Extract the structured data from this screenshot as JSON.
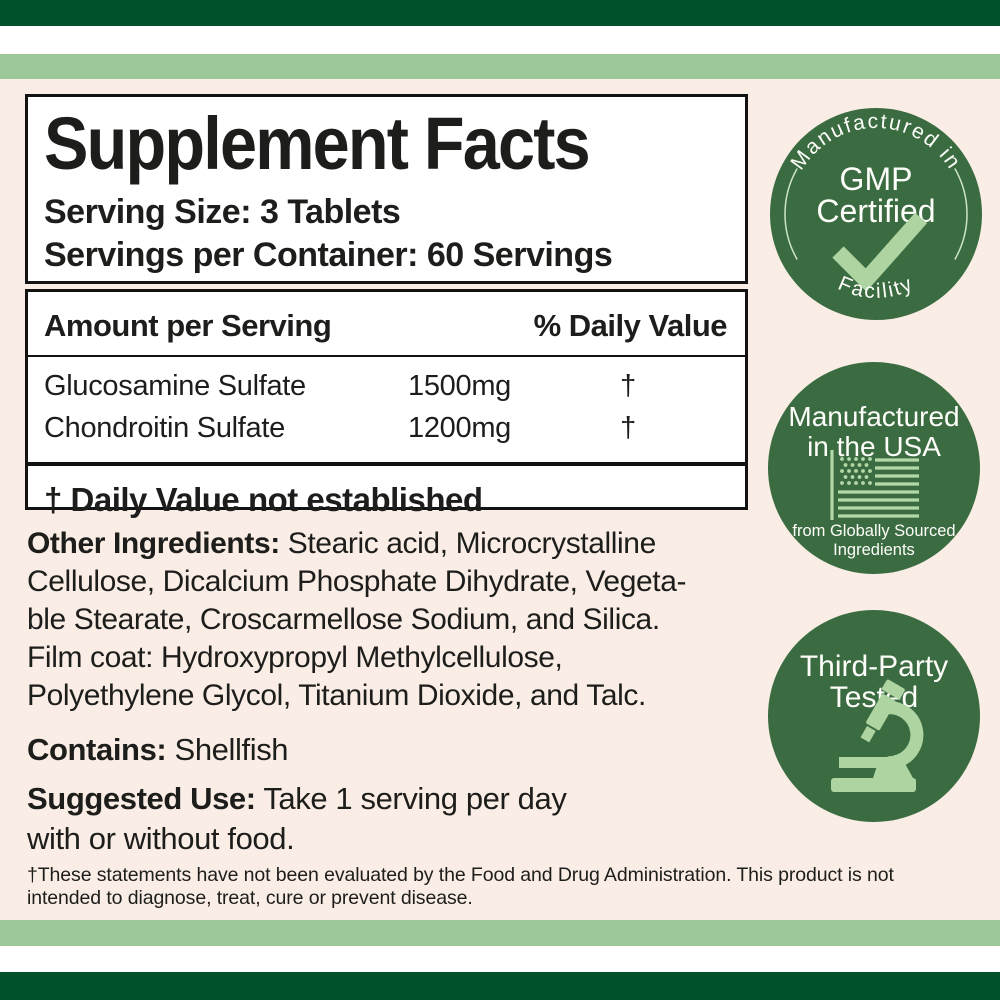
{
  "colors": {
    "stripe_dark_green": "#00522a",
    "stripe_light_green": "#9cc897",
    "background_cream": "#f9ede5",
    "badge_green": "#3b6c41",
    "badge_icon_light_green": "#aed4a1",
    "text_black": "#1d1d1b"
  },
  "facts": {
    "title": "Supplement Facts",
    "serving_size": "Serving Size: 3 Tablets",
    "servings_per_container": "Servings per Container: 60 Servings",
    "col_amount": "Amount per Serving",
    "col_dv": "% Daily Value",
    "rows": [
      {
        "name": "Glucosamine Sulfate",
        "amount": "1500mg",
        "dv": "†"
      },
      {
        "name": "Chondroitin Sulfate",
        "amount": "1200mg",
        "dv": "†"
      }
    ],
    "dv_note": "† Daily Value not established"
  },
  "other_ingredients": {
    "label": "Other Ingredients:",
    "lines": [
      " Stearic acid, Microcrystalline",
      "Cellulose, Dicalcium Phosphate Dihydrate, Vegeta-",
      "ble Stearate, Croscarmellose Sodium, and Silica.",
      "Film coat: Hydroxypropyl Methylcellulose,",
      "Polyethylene Glycol, Titanium Dioxide, and Talc."
    ]
  },
  "contains": {
    "label": "Contains:",
    "text": " Shellfish"
  },
  "suggested_use": {
    "label": "Suggested Use:",
    "lines": [
      " Take 1 serving per day",
      "with or without food."
    ]
  },
  "disclaimer_lines": [
    "†These statements have not been evaluated by the Food and Drug Administration. This product is not",
    "intended to diagnose, treat, cure or prevent disease."
  ],
  "badges": [
    {
      "arc_top": "Manufactured in",
      "line1": "GMP",
      "line2": "Certified",
      "arc_bottom": "Facility",
      "icon": "checkmark-icon"
    },
    {
      "line1": "Manufactured",
      "line2": "in the USA",
      "sub1": "from Globally Sourced",
      "sub2": "Ingredients",
      "icon": "usa-flag-icon"
    },
    {
      "line1": "Third-Party",
      "line2": "Tested",
      "icon": "microscope-icon"
    }
  ]
}
